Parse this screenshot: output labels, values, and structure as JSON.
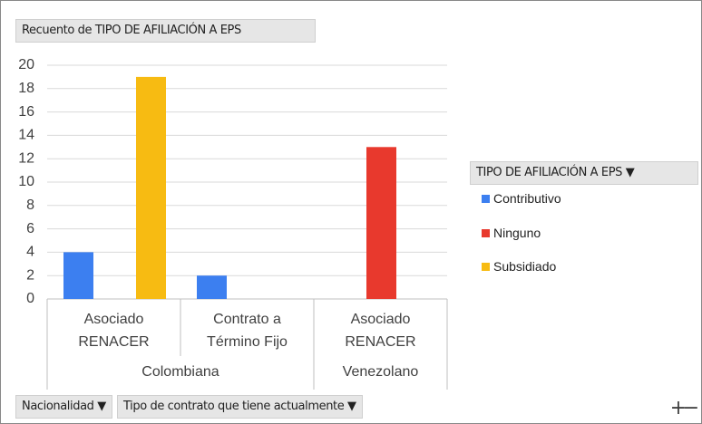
{
  "chart_data": {
    "type": "bar",
    "title": "Recuento de TIPO DE AFILIACIÓN A EPS",
    "groups": [
      {
        "label": "Colombiana",
        "categories": [
          "Asociado RENACER",
          "Contrato a Término Fijo"
        ]
      },
      {
        "label": "Venezolano",
        "categories": [
          "Asociado RENACER"
        ]
      }
    ],
    "legend_title": "TIPO DE AFILIACIÓN A EPS",
    "series": [
      {
        "name": "Contributivo",
        "color": "#3c7ff0",
        "values": [
          4,
          2,
          null
        ]
      },
      {
        "name": "Ninguno",
        "color": "#e8392d",
        "values": [
          null,
          null,
          13
        ]
      },
      {
        "name": "Subsidiado",
        "color": "#f7bb12",
        "values": [
          19,
          null,
          null
        ]
      }
    ],
    "ylim": [
      0,
      20
    ],
    "yticks": [
      0,
      2,
      4,
      6,
      8,
      10,
      12,
      14,
      16,
      18,
      20
    ],
    "grid": true,
    "legend": "right",
    "axis_fields": [
      "Nacionalidad",
      "Tipo de contrato que tiene actualmente"
    ]
  }
}
